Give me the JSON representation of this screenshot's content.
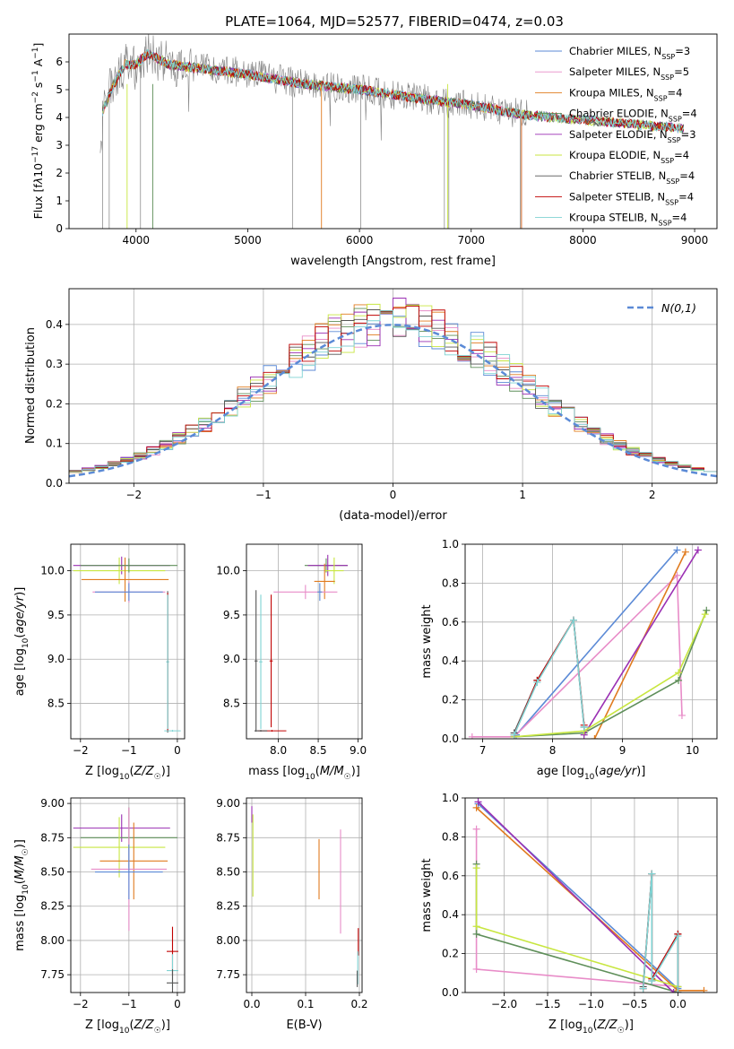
{
  "figure": {
    "title": "PLATE=1064, MJD=52577, FIBERID=0474, z=0.03",
    "model_colors": [
      "#5b8ad6",
      "#e88cc8",
      "#e07b1f",
      "#5f8f5a",
      "#9a2fb3",
      "#c8e640",
      "#555555",
      "#c00000",
      "#7fd3d3"
    ]
  },
  "chart_data": [
    {
      "id": "spectrum",
      "type": "line",
      "title": "PLATE=1064, MJD=52577, FIBERID=0474, z=0.03",
      "xlabel": "wavelength [Angstrom, rest frame]",
      "ylabel": "Flux [fλ 10^-17 erg cm^-2 s^-1 A^-1]",
      "xlim": [
        3400,
        9200
      ],
      "ylim": [
        0,
        7
      ],
      "xticks": [
        4000,
        5000,
        6000,
        7000,
        8000,
        9000
      ],
      "yticks": [
        0,
        1,
        2,
        3,
        4,
        5,
        6
      ],
      "grid": false,
      "legend_position": "top-right",
      "legend": [
        {
          "label": "Chabrier MILES, N",
          "sub": "SSP",
          "suffix": "=3"
        },
        {
          "label": "Salpeter MILES, N",
          "sub": "SSP",
          "suffix": "=5"
        },
        {
          "label": "Kroupa MILES, N",
          "sub": "SSP",
          "suffix": "=4"
        },
        {
          "label": "Chabrier ELODIE, N",
          "sub": "SSP",
          "suffix": "=4"
        },
        {
          "label": "Salpeter ELODIE, N",
          "sub": "SSP",
          "suffix": "=3"
        },
        {
          "label": "Kroupa ELODIE, N",
          "sub": "SSP",
          "suffix": "=4"
        },
        {
          "label": "Chabrier STELIB, N",
          "sub": "SSP",
          "suffix": "=4"
        },
        {
          "label": "Salpeter STELIB, N",
          "sub": "SSP",
          "suffix": "=4"
        },
        {
          "label": "Kroupa STELIB, N",
          "sub": "SSP",
          "suffix": "=4"
        }
      ],
      "data_continuum": [
        [
          3700,
          4.6
        ],
        [
          3800,
          5.3
        ],
        [
          3900,
          5.9
        ],
        [
          4000,
          5.9
        ],
        [
          4100,
          6.3
        ],
        [
          4300,
          5.9
        ],
        [
          4500,
          5.8
        ],
        [
          5000,
          5.6
        ],
        [
          5500,
          5.2
        ],
        [
          6000,
          5.0
        ],
        [
          6500,
          4.7
        ],
        [
          7000,
          4.4
        ],
        [
          7500,
          4.1
        ],
        [
          8000,
          3.9
        ],
        [
          8500,
          3.75
        ],
        [
          8900,
          3.6
        ]
      ],
      "model_continuum": [
        [
          3700,
          4.2
        ],
        [
          3800,
          5.2
        ],
        [
          3900,
          5.9
        ],
        [
          4000,
          5.9
        ],
        [
          4100,
          6.3
        ],
        [
          4300,
          5.9
        ],
        [
          4500,
          5.8
        ],
        [
          5000,
          5.55
        ],
        [
          5500,
          5.2
        ],
        [
          6000,
          5.0
        ],
        [
          6500,
          4.7
        ],
        [
          7000,
          4.45
        ],
        [
          7450,
          4.1
        ]
      ],
      "model_end_x": [
        7450,
        7450,
        7450,
        8900,
        8900,
        8900,
        8900,
        8900,
        8900
      ]
    },
    {
      "id": "residuals",
      "type": "histogram",
      "xlabel": "(data-model)/error",
      "ylabel": "Normed distribution",
      "xlim": [
        -2.5,
        2.5
      ],
      "ylim": [
        0,
        0.49
      ],
      "xticks": [
        -2,
        -1,
        0,
        1,
        2
      ],
      "yticks": [
        0.0,
        0.1,
        0.2,
        0.3,
        0.4
      ],
      "grid": true,
      "legend_position": "top-right",
      "reference_label": "N(0,1)",
      "bin_width": 0.1
    },
    {
      "id": "age-vs-z",
      "type": "errorbar",
      "xlabel": "Z [log10(Z/Z☉)]",
      "ylabel": "age  [log10(age/yr)]",
      "xlim": [
        -2.2,
        0.15
      ],
      "ylim": [
        8.1,
        10.3
      ],
      "xticks": [
        -2,
        -1,
        0
      ],
      "yticks": [
        8.5,
        9.0,
        9.5,
        10.0
      ],
      "grid": true,
      "points": [
        {
          "x": -1.15,
          "y": 10.06,
          "xe": 1.0,
          "ye": 0.1,
          "c": 4
        },
        {
          "x": -1.2,
          "y": 10.0,
          "xe": 0.95,
          "ye": 0.15,
          "c": 5
        },
        {
          "x": -1.08,
          "y": 9.9,
          "xe": 0.9,
          "ye": 0.25,
          "c": 2
        },
        {
          "x": -1.0,
          "y": 9.76,
          "xe": 0.75,
          "ye": 0.12,
          "c": 1
        },
        {
          "x": -1.0,
          "y": 9.76,
          "xe": 0.7,
          "ye": 0.1,
          "c": 0
        },
        {
          "x": -1.0,
          "y": 10.06,
          "xe": 1.0,
          "ye": 0.08,
          "c": 3
        },
        {
          "x": -0.2,
          "y": 8.97,
          "xe": 0.02,
          "ye": 0.8,
          "c": 6
        },
        {
          "x": -0.2,
          "y": 8.97,
          "xe": 0.02,
          "ye": 0.78,
          "c": 7
        },
        {
          "x": -0.1,
          "y": 8.19,
          "xe": 0.17,
          "ye": 0.01,
          "c": 8
        },
        {
          "x": -0.2,
          "y": 8.97,
          "xe": 0.03,
          "ye": 0.76,
          "c": 8
        }
      ]
    },
    {
      "id": "age-vs-mass",
      "type": "errorbar",
      "xlabel": "mass [log10(M/M☉)]",
      "ylabel": "",
      "xlim": [
        7.6,
        9.05
      ],
      "ylim": [
        8.1,
        10.3
      ],
      "xticks": [
        8.0,
        8.5,
        9.0
      ],
      "yticks": [
        8.5,
        9.0,
        9.5,
        10.0
      ],
      "grid": true,
      "points": [
        {
          "x": 8.6,
          "y": 10.06,
          "xe": 0.27,
          "ye": 0.08,
          "c": 3
        },
        {
          "x": 8.62,
          "y": 10.06,
          "xe": 0.25,
          "ye": 0.12,
          "c": 4
        },
        {
          "x": 8.7,
          "y": 10.0,
          "xe": 0.12,
          "ye": 0.15,
          "c": 5
        },
        {
          "x": 8.58,
          "y": 9.88,
          "xe": 0.13,
          "ye": 0.2,
          "c": 2
        },
        {
          "x": 8.34,
          "y": 9.76,
          "xe": 0.4,
          "ye": 0.08,
          "c": 1
        },
        {
          "x": 8.52,
          "y": 9.76,
          "xe": 0.03,
          "ye": 0.1,
          "c": 0
        },
        {
          "x": 7.72,
          "y": 8.98,
          "xe": 0.02,
          "ye": 0.8,
          "c": 6
        },
        {
          "x": 7.91,
          "y": 8.98,
          "xe": 0.02,
          "ye": 0.75,
          "c": 7
        },
        {
          "x": 7.78,
          "y": 8.97,
          "xe": 0.02,
          "ye": 0.76,
          "c": 8
        },
        {
          "x": 7.92,
          "y": 8.19,
          "xe": 0.18,
          "ye": 0.01,
          "c": 7
        },
        {
          "x": 7.78,
          "y": 8.19,
          "xe": 0.08,
          "ye": 0.01,
          "c": 6
        }
      ]
    },
    {
      "id": "weight-vs-age",
      "type": "line",
      "xlabel": "age  [log10(age/yr)]",
      "ylabel": "mass weight",
      "xlim": [
        6.75,
        10.35
      ],
      "ylim": [
        0,
        1.0
      ],
      "xticks": [
        7,
        8,
        9,
        10
      ],
      "yticks": [
        0.0,
        0.2,
        0.4,
        0.6,
        0.8,
        1.0
      ],
      "grid": true,
      "series": [
        {
          "c": 0,
          "x": [
            7.48,
            9.78
          ],
          "y": [
            0.02,
            0.97
          ]
        },
        {
          "c": 1,
          "x": [
            6.85,
            7.45,
            9.78,
            9.85
          ],
          "y": [
            0.01,
            0.01,
            0.84,
            0.12
          ]
        },
        {
          "c": 2,
          "x": [
            8.6,
            9.9
          ],
          "y": [
            0.0,
            0.96
          ]
        },
        {
          "c": 3,
          "x": [
            7.45,
            8.45,
            9.8,
            10.2
          ],
          "y": [
            0.01,
            0.03,
            0.3,
            0.66
          ]
        },
        {
          "c": 4,
          "x": [
            8.45,
            10.08
          ],
          "y": [
            0.02,
            0.97
          ]
        },
        {
          "c": 5,
          "x": [
            7.45,
            8.45,
            9.8,
            10.18
          ],
          "y": [
            0.01,
            0.04,
            0.34,
            0.64
          ]
        },
        {
          "c": 6,
          "x": [
            7.45,
            7.78,
            8.3,
            8.45
          ],
          "y": [
            0.03,
            0.3,
            0.61,
            0.06
          ]
        },
        {
          "c": 7,
          "x": [
            7.45,
            7.78,
            8.3,
            8.45
          ],
          "y": [
            0.02,
            0.3,
            0.61,
            0.07
          ]
        },
        {
          "c": 8,
          "x": [
            7.45,
            7.78,
            8.3,
            8.45
          ],
          "y": [
            0.02,
            0.29,
            0.61,
            0.06
          ]
        }
      ]
    },
    {
      "id": "mass-vs-z",
      "type": "errorbar",
      "xlabel": "Z [log10(Z/Z☉)]",
      "ylabel": "mass [log10(M/M☉)]",
      "xlim": [
        -2.2,
        0.15
      ],
      "ylim": [
        7.62,
        9.04
      ],
      "xticks": [
        -2,
        -1,
        0
      ],
      "yticks": [
        7.75,
        8.0,
        8.25,
        8.5,
        8.75,
        9.0
      ],
      "grid": true,
      "points": [
        {
          "x": -1.15,
          "y": 8.82,
          "xe": 1.0,
          "ye": 0.1,
          "c": 4
        },
        {
          "x": -1.0,
          "y": 8.75,
          "xe": 1.0,
          "ye": 0.22,
          "c": 3
        },
        {
          "x": -1.2,
          "y": 8.68,
          "xe": 0.95,
          "ye": 0.22,
          "c": 5
        },
        {
          "x": -0.9,
          "y": 8.58,
          "xe": 0.7,
          "ye": 0.28,
          "c": 2
        },
        {
          "x": -1.0,
          "y": 8.52,
          "xe": 0.78,
          "ye": 0.45,
          "c": 1
        },
        {
          "x": -1.0,
          "y": 8.5,
          "xe": 0.7,
          "ye": 0.2,
          "c": 0
        },
        {
          "x": -0.1,
          "y": 7.92,
          "xe": 0.12,
          "ye": 0.18,
          "c": 7
        },
        {
          "x": -0.1,
          "y": 7.78,
          "xe": 0.12,
          "ye": 0.12,
          "c": 8
        },
        {
          "x": -0.1,
          "y": 7.69,
          "xe": 0.12,
          "ye": 0.1,
          "c": 6
        }
      ]
    },
    {
      "id": "mass-vs-ebv",
      "type": "errorbar",
      "xlabel": "E(B-V)",
      "ylabel": "",
      "xlim": [
        -0.01,
        0.205
      ],
      "ylim": [
        7.62,
        9.04
      ],
      "xticks": [
        0.0,
        0.1,
        0.2
      ],
      "yticks": [
        7.75,
        8.0,
        8.25,
        8.5,
        8.75,
        9.0
      ],
      "grid": true,
      "points": [
        {
          "x": 0.0,
          "y": 8.92,
          "xe": 0.0,
          "ye": 0.06,
          "c": 4
        },
        {
          "x": 0.002,
          "y": 8.62,
          "xe": 0.0,
          "ye": 0.3,
          "c": 5
        },
        {
          "x": 0.125,
          "y": 8.52,
          "xe": 0.0,
          "ye": 0.22,
          "c": 2
        },
        {
          "x": 0.165,
          "y": 8.43,
          "xe": 0.0,
          "ye": 0.38,
          "c": 1
        },
        {
          "x": 0.198,
          "y": 7.99,
          "xe": 0.0,
          "ye": 0.1,
          "c": 7
        },
        {
          "x": 0.197,
          "y": 7.8,
          "xe": 0.0,
          "ye": 0.12,
          "c": 8
        },
        {
          "x": 0.196,
          "y": 7.72,
          "xe": 0.0,
          "ye": 0.06,
          "c": 6
        }
      ]
    },
    {
      "id": "weight-vs-z",
      "type": "line",
      "xlabel": "Z [log10(Z/Z☉)]",
      "ylabel": "mass weight",
      "xlim": [
        -2.45,
        0.45
      ],
      "ylim": [
        0,
        1.0
      ],
      "xticks": [
        -2.0,
        -1.5,
        -1.0,
        -0.5,
        0.0
      ],
      "yticks": [
        0.0,
        0.2,
        0.4,
        0.6,
        0.8,
        1.0
      ],
      "grid": true,
      "series": [
        {
          "c": 0,
          "x": [
            -2.3,
            0.0
          ],
          "y": [
            0.97,
            0.02
          ]
        },
        {
          "c": 1,
          "x": [
            -2.32,
            -2.32,
            0.0
          ],
          "y": [
            0.84,
            0.12,
            0.03
          ]
        },
        {
          "c": 2,
          "x": [
            -2.32,
            0.0,
            0.3
          ],
          "y": [
            0.95,
            0.01,
            0.01
          ]
        },
        {
          "c": 3,
          "x": [
            -2.32,
            -2.32,
            0.0,
            0.0
          ],
          "y": [
            0.66,
            0.3,
            0.0,
            0.03
          ]
        },
        {
          "c": 4,
          "x": [
            -2.3,
            -0.05
          ],
          "y": [
            0.98,
            0.0
          ]
        },
        {
          "c": 5,
          "x": [
            -2.32,
            -2.32,
            0.0
          ],
          "y": [
            0.64,
            0.34,
            0.03
          ]
        },
        {
          "c": 6,
          "x": [
            -0.4,
            -0.3,
            -0.3,
            0.0,
            0.0
          ],
          "y": [
            0.03,
            0.61,
            0.06,
            0.3,
            0.0
          ]
        },
        {
          "c": 7,
          "x": [
            -0.4,
            -0.3,
            -0.3,
            0.0,
            0.0
          ],
          "y": [
            0.02,
            0.61,
            0.07,
            0.3,
            0.0
          ]
        },
        {
          "c": 8,
          "x": [
            -0.4,
            -0.3,
            -0.3,
            0.0,
            0.0
          ],
          "y": [
            0.02,
            0.61,
            0.06,
            0.29,
            0.0
          ]
        }
      ]
    }
  ]
}
